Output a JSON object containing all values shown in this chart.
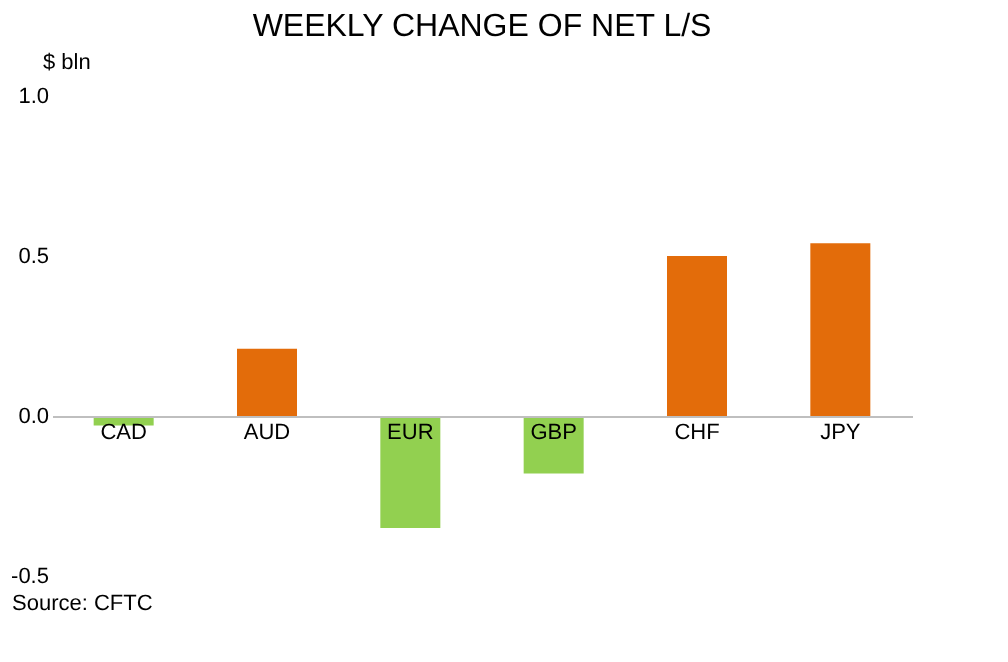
{
  "chart_data": {
    "type": "bar",
    "title": "WEEKLY CHANGE OF NET L/S",
    "ylabel": "$ bln",
    "categories": [
      "CAD",
      "AUD",
      "EUR",
      "GBP",
      "CHF",
      "JPY"
    ],
    "values": [
      -0.03,
      0.21,
      -0.35,
      -0.18,
      0.5,
      0.54
    ],
    "colors": [
      "#92d050",
      "#e36c0a",
      "#92d050",
      "#92d050",
      "#e36c0a",
      "#e36c0a"
    ],
    "ylim": [
      -0.5,
      1.0
    ],
    "yticks": [
      {
        "value": -0.5,
        "label": "-0.5"
      },
      {
        "value": 0,
        "label": "0.0"
      },
      0.5,
      {
        "value": 1,
        "label": "1.0"
      }
    ],
    "grid": false,
    "annotations": [
      "Source: CFTC"
    ]
  }
}
